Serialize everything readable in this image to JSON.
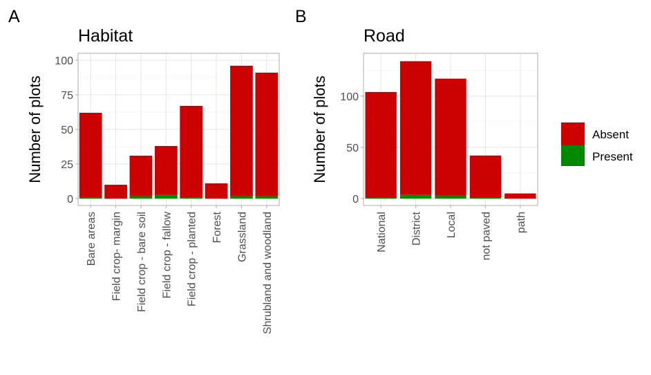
{
  "panels": {
    "a": {
      "letter": "A"
    },
    "b": {
      "letter": "B"
    }
  },
  "legend": {
    "items": [
      {
        "label": "Absent",
        "color": "#cc0000"
      },
      {
        "label": "Present",
        "color": "#008800"
      }
    ]
  },
  "chart_data": [
    {
      "type": "bar",
      "stacked": true,
      "title": "Habitat",
      "xlabel": "",
      "ylabel": "Number of plots",
      "ylim": [
        0,
        100
      ],
      "yticks": [
        0,
        25,
        50,
        75,
        100
      ],
      "grid": true,
      "categories": [
        "Bare areas",
        "Field crop- margin",
        "Field crop - bare soil",
        "Field crop - fallow",
        "Field crop - planted",
        "Forest",
        "Grassland",
        "Shrubland and woodland"
      ],
      "series": [
        {
          "name": "Present",
          "color": "#008800",
          "values": [
            1,
            0,
            2,
            3,
            1,
            0,
            2,
            2
          ]
        },
        {
          "name": "Absent",
          "color": "#cc0000",
          "values": [
            61,
            10,
            29,
            35,
            66,
            11,
            94,
            89
          ]
        }
      ]
    },
    {
      "type": "bar",
      "stacked": true,
      "title": "Road",
      "xlabel": "",
      "ylabel": "Number of plots",
      "ylim": [
        0,
        135
      ],
      "yticks": [
        0,
        50,
        100
      ],
      "grid": true,
      "categories": [
        "National",
        "District",
        "Local",
        "not paved",
        "path"
      ],
      "series": [
        {
          "name": "Present",
          "color": "#008800",
          "values": [
            1,
            4,
            3,
            1,
            0
          ]
        },
        {
          "name": "Absent",
          "color": "#cc0000",
          "values": [
            103,
            130,
            114,
            41,
            5
          ]
        }
      ]
    }
  ]
}
